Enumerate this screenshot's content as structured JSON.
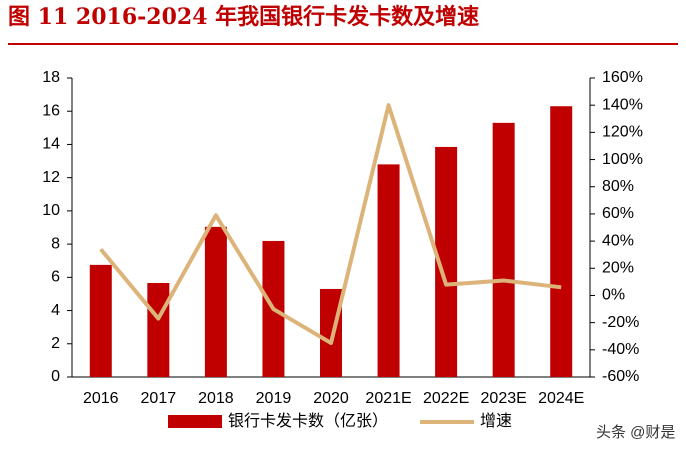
{
  "chart_data": {
    "type": "bar_line",
    "title": "图 11   2016-2024 年我国银行卡发卡数及增速",
    "categories": [
      "2016",
      "2017",
      "2018",
      "2019",
      "2020",
      "2021E",
      "2022E",
      "2023E",
      "2024E"
    ],
    "series": [
      {
        "name": "银行卡发卡数（亿张）",
        "color": "#c00000",
        "type": "bar",
        "values": [
          6.75,
          5.66,
          9.04,
          8.19,
          5.3,
          12.8,
          13.85,
          15.3,
          16.3
        ]
      },
      {
        "name": "增速",
        "color": "#dcb47a",
        "type": "line",
        "axis": "y2",
        "values": [
          34,
          -17,
          59,
          -10,
          -35,
          140,
          8,
          11,
          6
        ]
      }
    ],
    "ylim": [
      0,
      18
    ],
    "yticks": [
      0,
      2,
      4,
      6,
      8,
      10,
      12,
      14,
      16,
      18
    ],
    "y2lim": [
      -60,
      160
    ],
    "y2ticks": [
      {
        "value": -60,
        "label": "-60%"
      },
      {
        "value": -40,
        "label": "-40%"
      },
      {
        "value": -20,
        "label": "-20%"
      },
      {
        "value": 0,
        "label": "0%"
      },
      {
        "value": 20,
        "label": "20%"
      },
      {
        "value": 40,
        "label": "40%"
      },
      {
        "value": 60,
        "label": "60%"
      },
      {
        "value": 80,
        "label": "80%"
      },
      {
        "value": 100,
        "label": "100%"
      },
      {
        "value": 120,
        "label": "120%"
      },
      {
        "value": 140,
        "label": "140%"
      },
      {
        "value": 160,
        "label": "160%"
      }
    ],
    "watermark": "头条 @财是"
  }
}
